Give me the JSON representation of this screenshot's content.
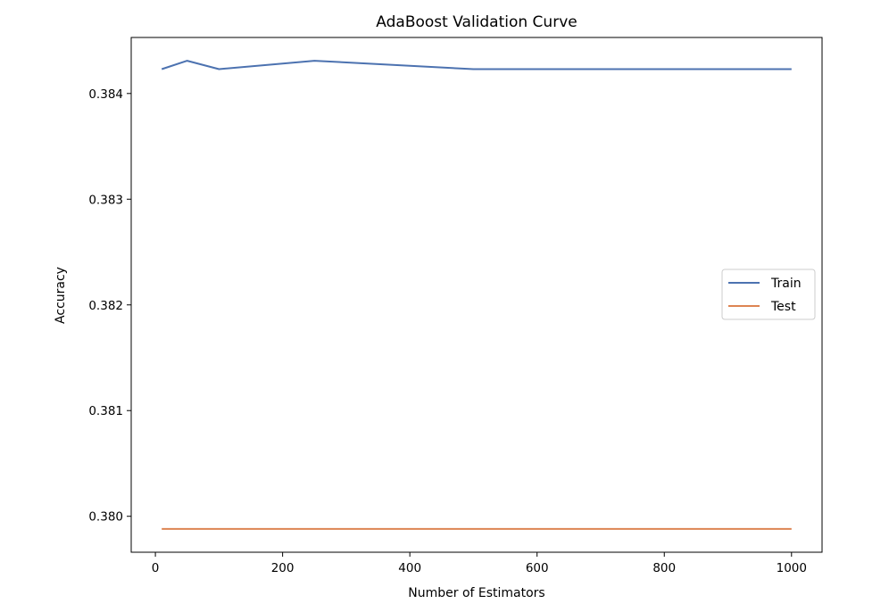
{
  "chart_data": {
    "type": "line",
    "title": "AdaBoost Validation Curve",
    "xlabel": "Number of Estimators",
    "ylabel": "Accuracy",
    "x": [
      10,
      50,
      100,
      250,
      500,
      1000
    ],
    "series": [
      {
        "name": "Train",
        "color": "#4c72b0",
        "values": [
          0.38423,
          0.38431,
          0.38423,
          0.38431,
          0.38423,
          0.38423
        ]
      },
      {
        "name": "Test",
        "color": "#dd8452",
        "values": [
          0.37988,
          0.37988,
          0.37988,
          0.37988,
          0.37988,
          0.37988
        ]
      }
    ],
    "xlim": [
      -38,
      1048
    ],
    "ylim": [
      0.37966,
      0.38453
    ],
    "xticks": [
      0,
      200,
      400,
      600,
      800,
      1000
    ],
    "xtick_labels": [
      "0",
      "200",
      "400",
      "600",
      "800",
      "1000"
    ],
    "yticks": [
      0.38,
      0.381,
      0.382,
      0.383,
      0.384
    ],
    "ytick_labels": [
      "0.380",
      "0.381",
      "0.382",
      "0.383",
      "0.384"
    ],
    "grid": false,
    "legend_position": "center-right"
  }
}
